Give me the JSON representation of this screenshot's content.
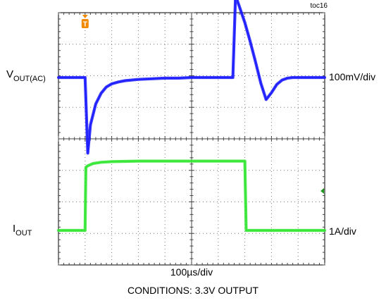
{
  "figure_id": "toc16",
  "chart_data": {
    "type": "line",
    "title": "",
    "xlabel": "100µs/div",
    "caption": "CONDITIONS: 3.3V OUTPUT",
    "grid": true,
    "divisions": {
      "x": 10,
      "y": 8
    },
    "xlim": [
      0,
      1000
    ],
    "x_unit": "µs",
    "trigger_marker": "T",
    "series": [
      {
        "name": "V",
        "name_sub": "OUT(AC)",
        "scale": "100mV/div",
        "color": "#1a1aff",
        "y_unit": "mV",
        "ylim": [
          -200,
          200
        ],
        "x": [
          0,
          100,
          110,
          120,
          140,
          160,
          180,
          200,
          225,
          250,
          300,
          350,
          400,
          450,
          500,
          550,
          600,
          655,
          665,
          680,
          700,
          720,
          740,
          760,
          780,
          800,
          820,
          840,
          860,
          880,
          900,
          950,
          1000
        ],
        "y": [
          0,
          0,
          -120,
          -75,
          -42,
          -25,
          -15,
          -10,
          -7,
          -5,
          -3,
          -2,
          -1,
          -1,
          0,
          0,
          0,
          0,
          130,
          112,
          87,
          57,
          25,
          -9,
          -35,
          -24,
          -11,
          -4,
          -1,
          0,
          0,
          0,
          0
        ]
      },
      {
        "name": "I",
        "name_sub": "OUT",
        "scale": "1A/div",
        "color": "#33e633",
        "y_unit": "A",
        "ylim": [
          -4,
          4
        ],
        "x": [
          0,
          100,
          103,
          110,
          130,
          160,
          200,
          300,
          400,
          500,
          600,
          700,
          705,
          800,
          900,
          1000
        ],
        "y": [
          0,
          0,
          2,
          2.05,
          2.12,
          2.16,
          2.18,
          2.2,
          2.2,
          2.2,
          2.2,
          2.2,
          0,
          0,
          0,
          0
        ]
      }
    ]
  }
}
